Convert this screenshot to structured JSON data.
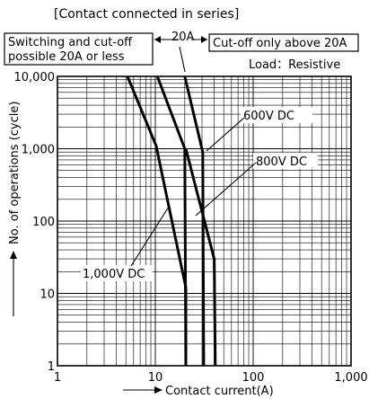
{
  "chart_data": {
    "type": "line",
    "title": "[Contact connected in series]",
    "load_label": "Load：Resistive",
    "xlabel": "Contact current(A)",
    "ylabel": "No. of operations (cycle)",
    "xscale": "log",
    "yscale": "log",
    "xlim": [
      1,
      1000
    ],
    "ylim": [
      1,
      10000
    ],
    "grid": true,
    "x_ticks": [
      "1",
      "10",
      "100",
      "1,000"
    ],
    "y_ticks": [
      "1",
      "10",
      "100",
      "1,000",
      "10,000"
    ],
    "annotations": {
      "left_region": [
        "Switching and cut-off",
        "possible 20A or less"
      ],
      "boundary": "20A",
      "right_region": "Cut-off only above 20A"
    },
    "series": [
      {
        "name": "1,000V DC",
        "x": [
          5.2,
          10.2,
          20.5,
          20.5
        ],
        "y": [
          10000,
          1100,
          12,
          1
        ]
      },
      {
        "name": "600V DC",
        "x": [
          10.5,
          20,
          20.5
        ],
        "y": [
          10000,
          1000,
          1
        ]
      },
      {
        "name": "800V DC",
        "x": [
          20,
          30.5,
          31.2
        ],
        "y": [
          10000,
          900,
          1
        ]
      },
      {
        "name": "",
        "x": [
          20.5,
          40,
          41
        ],
        "y": [
          1000,
          30,
          1
        ]
      }
    ]
  }
}
